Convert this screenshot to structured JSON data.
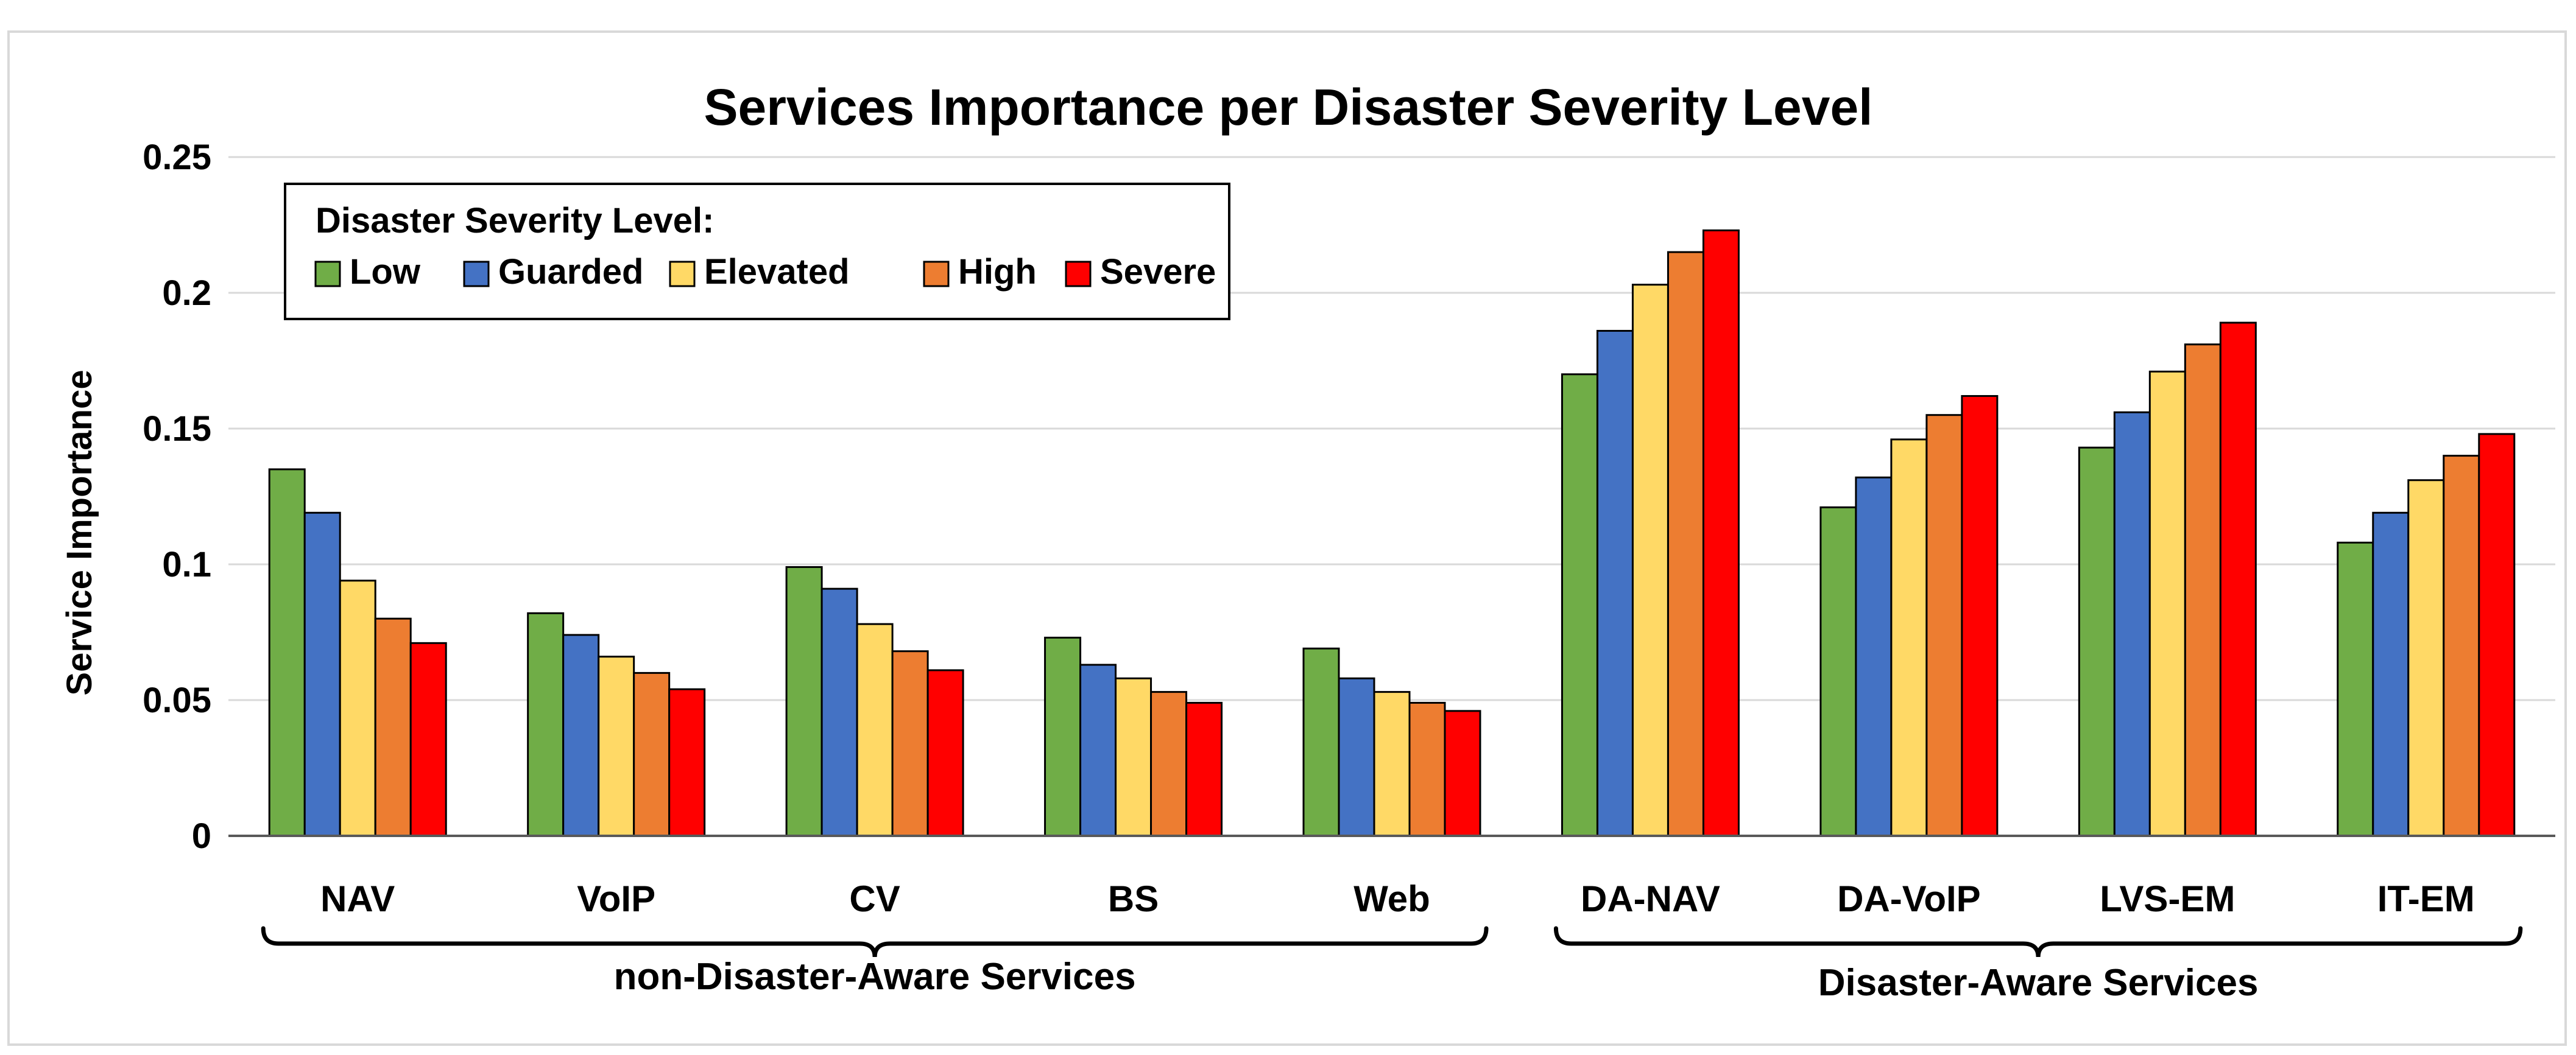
{
  "chart_data": {
    "type": "bar",
    "title": "Services Importance per Disaster Severity Level",
    "xlabel": "",
    "ylabel": "Service Importance",
    "ylim": [
      0,
      0.25
    ],
    "yticks": [
      0,
      0.05,
      0.1,
      0.15,
      0.2,
      0.25
    ],
    "ytick_labels": [
      "0",
      "0.05",
      "0.1",
      "0.15",
      "0.2",
      "0.25"
    ],
    "grid": true,
    "legend": {
      "title": "Disaster Severity Level:",
      "position": "top-left"
    },
    "categories": [
      "NAV",
      "VoIP",
      "CV",
      "BS",
      "Web",
      "DA-NAV",
      "DA-VoIP",
      "LVS-EM",
      "IT-EM"
    ],
    "series": [
      {
        "name": "Low",
        "color": "#70AD47",
        "values": [
          0.135,
          0.082,
          0.099,
          0.073,
          0.069,
          0.17,
          0.121,
          0.143,
          0.108
        ]
      },
      {
        "name": "Guarded",
        "color": "#4472C4",
        "values": [
          0.119,
          0.074,
          0.091,
          0.063,
          0.058,
          0.186,
          0.132,
          0.156,
          0.119
        ]
      },
      {
        "name": "Elevated",
        "color": "#FFD966",
        "values": [
          0.094,
          0.066,
          0.078,
          0.058,
          0.053,
          0.203,
          0.146,
          0.171,
          0.131
        ]
      },
      {
        "name": "High",
        "color": "#ED7D31",
        "values": [
          0.08,
          0.06,
          0.068,
          0.053,
          0.049,
          0.215,
          0.155,
          0.181,
          0.14
        ]
      },
      {
        "name": "Severe",
        "color": "#FF0000",
        "values": [
          0.071,
          0.054,
          0.061,
          0.049,
          0.046,
          0.223,
          0.162,
          0.189,
          0.148
        ]
      }
    ],
    "groups": [
      {
        "label": "non-Disaster-Aware Services",
        "categories": [
          "NAV",
          "VoIP",
          "CV",
          "BS",
          "Web"
        ]
      },
      {
        "label": "Disaster-Aware Services",
        "categories": [
          "DA-NAV",
          "DA-VoIP",
          "LVS-EM",
          "IT-EM"
        ]
      }
    ]
  }
}
